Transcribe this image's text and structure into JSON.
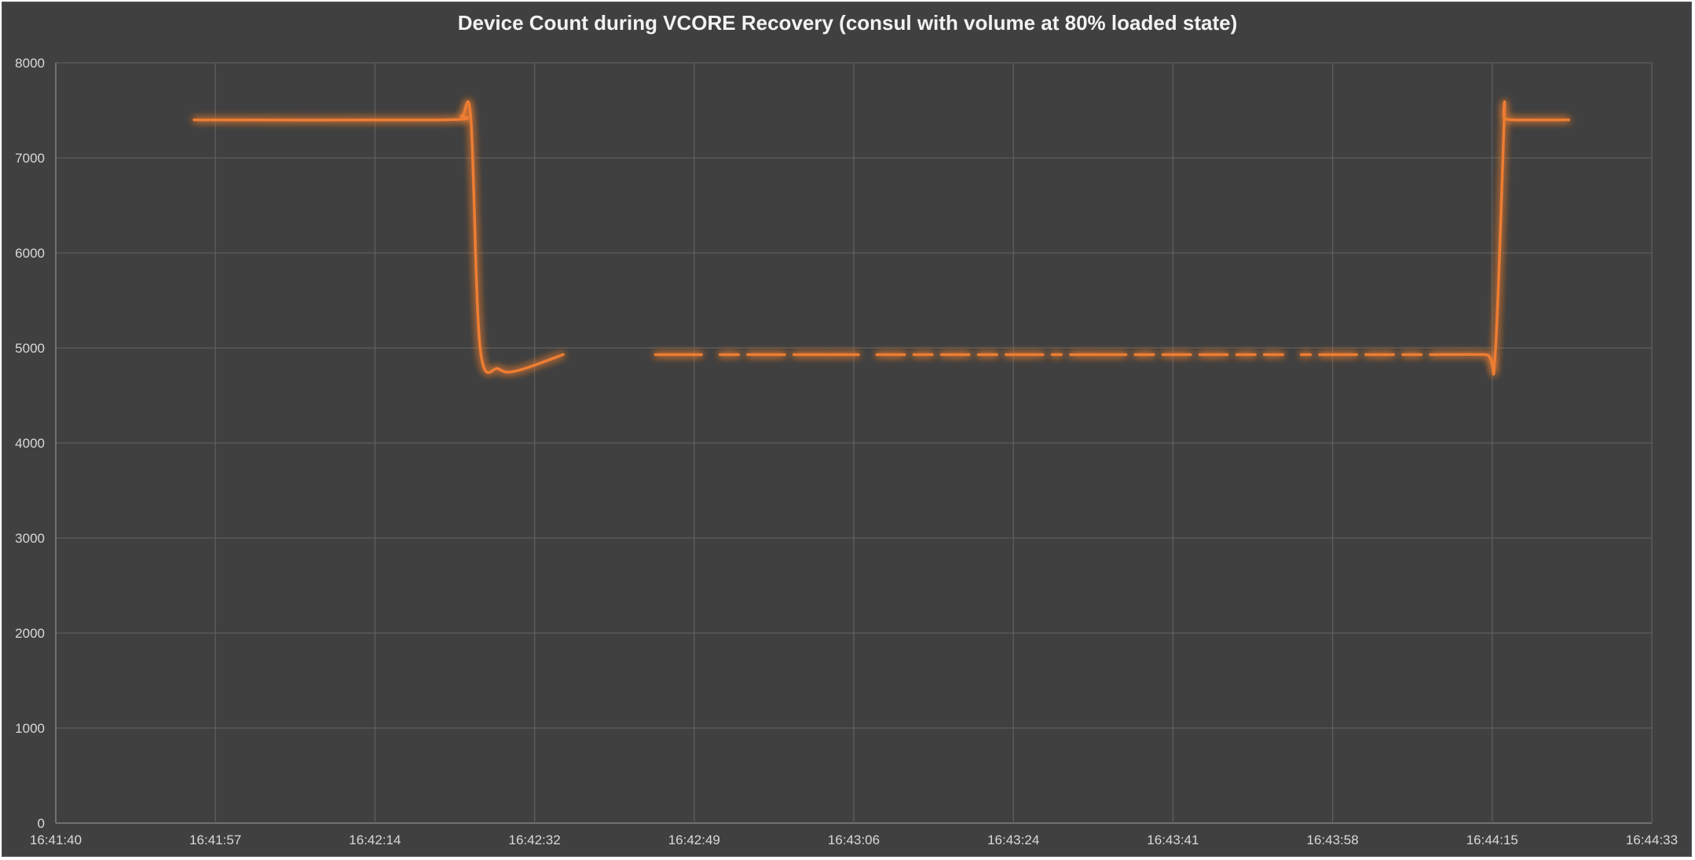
{
  "chart_data": {
    "type": "line",
    "title": "Device Count during VCORE Recovery (consul with volume at 80% loaded state)",
    "xlabel": "",
    "ylabel": "",
    "ylim": [
      0,
      8000
    ],
    "y_ticks": [
      "0",
      "1000",
      "2000",
      "3000",
      "4000",
      "5000",
      "6000",
      "7000",
      "8000"
    ],
    "x_ticks": [
      "16:41:40",
      "16:41:57",
      "16:42:14",
      "16:42:32",
      "16:42:49",
      "16:43:06",
      "16:43:24",
      "16:43:41",
      "16:43:58",
      "16:44:15",
      "16:44:33"
    ],
    "grid": true,
    "legend": "none",
    "line_color": "#ED7D31",
    "smooth": true,
    "series": [
      {
        "segments": [
          [
            [
              "16:41:55",
              7400
            ],
            [
              "16:42:22",
              7400
            ],
            [
              "16:42:24",
              7440
            ],
            [
              "16:42:25",
              7400
            ],
            [
              "16:42:26",
              5000
            ],
            [
              "16:42:28",
              4780
            ],
            [
              "16:42:30",
              4760
            ],
            [
              "16:42:35",
              4930
            ]
          ],
          [
            [
              "16:42:45",
              4930
            ],
            [
              "16:42:50",
              4930
            ]
          ],
          [
            [
              "16:42:52",
              4930
            ],
            [
              "16:42:54",
              4930
            ]
          ],
          [
            [
              "16:42:55",
              4930
            ],
            [
              "16:42:59",
              4930
            ]
          ],
          [
            [
              "16:43:00",
              4930
            ],
            [
              "16:43:02",
              4930
            ]
          ],
          [
            [
              "16:43:02",
              4930
            ],
            [
              "16:43:05",
              4930
            ]
          ],
          [
            [
              "16:43:05",
              4930
            ],
            [
              "16:43:07",
              4930
            ]
          ],
          [
            [
              "16:43:09",
              4930
            ],
            [
              "16:43:12",
              4930
            ]
          ],
          [
            [
              "16:43:13",
              4930
            ],
            [
              "16:43:15",
              4930
            ]
          ],
          [
            [
              "16:43:16",
              4930
            ],
            [
              "16:43:19",
              4930
            ]
          ],
          [
            [
              "16:43:20",
              4930
            ],
            [
              "16:43:22",
              4930
            ]
          ],
          [
            [
              "16:43:23",
              4930
            ],
            [
              "16:43:27",
              4930
            ]
          ],
          [
            [
              "16:43:28",
              4930
            ],
            [
              "16:43:29",
              4930
            ]
          ],
          [
            [
              "16:43:30",
              4930
            ],
            [
              "16:43:32",
              4930
            ]
          ],
          [
            [
              "16:43:32",
              4930
            ],
            [
              "16:43:36",
              4930
            ]
          ],
          [
            [
              "16:43:37",
              4930
            ],
            [
              "16:43:39",
              4930
            ]
          ],
          [
            [
              "16:43:40",
              4930
            ],
            [
              "16:43:42",
              4930
            ]
          ],
          [
            [
              "16:43:42",
              4930
            ],
            [
              "16:43:43",
              4930
            ]
          ],
          [
            [
              "16:43:44",
              4930
            ],
            [
              "16:43:47",
              4930
            ]
          ],
          [
            [
              "16:43:48",
              4930
            ],
            [
              "16:43:50",
              4930
            ]
          ],
          [
            [
              "16:43:51",
              4930
            ],
            [
              "16:43:53",
              4930
            ]
          ],
          [
            [
              "16:43:55",
              4930
            ],
            [
              "16:43:56",
              4930
            ]
          ],
          [
            [
              "16:43:57",
              4930
            ],
            [
              "16:44:01",
              4930
            ]
          ],
          [
            [
              "16:44:02",
              4930
            ],
            [
              "16:44:05",
              4930
            ]
          ],
          [
            [
              "16:44:06",
              4930
            ],
            [
              "16:44:08",
              4930
            ]
          ],
          [
            [
              "16:44:09",
              4930
            ],
            [
              "16:44:15",
              4930
            ],
            [
              "16:44:16",
              4900
            ],
            [
              "16:44:17",
              7400
            ],
            [
              "16:44:17",
              7420
            ],
            [
              "16:44:18",
              7400
            ],
            [
              "16:44:24",
              7400
            ]
          ]
        ]
      }
    ]
  }
}
